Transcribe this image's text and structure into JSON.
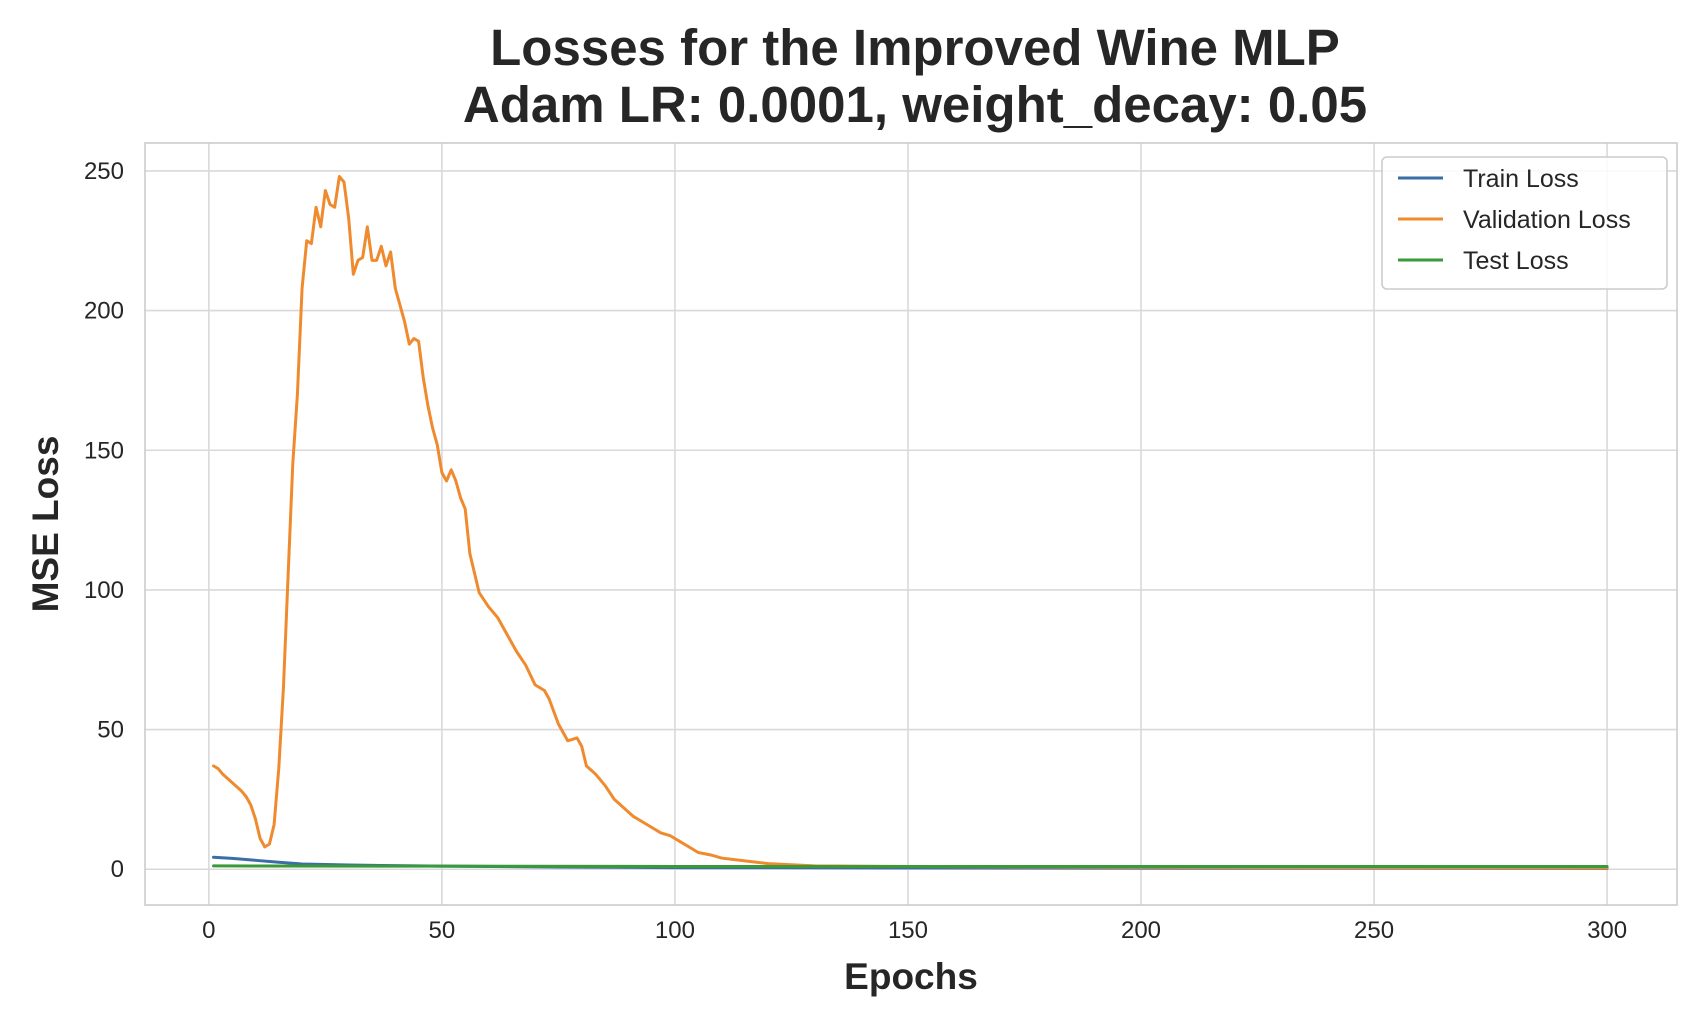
{
  "chart_data": {
    "type": "line",
    "title": [
      "Losses for the Improved Wine MLP",
      "Adam LR: 0.0001, weight_decay: 0.05"
    ],
    "xlabel": "Epochs",
    "ylabel": "MSE Loss",
    "xlim": [
      -13.7,
      315
    ],
    "ylim": [
      -12.8,
      260
    ],
    "xticks": [
      0,
      50,
      100,
      150,
      200,
      250,
      300
    ],
    "yticks": [
      0,
      50,
      100,
      150,
      200,
      250
    ],
    "grid": true,
    "legend_position": "top-right",
    "series": [
      {
        "name": "Train Loss",
        "color": "#3a6ea5",
        "points": [
          [
            1,
            4.3
          ],
          [
            5,
            3.9
          ],
          [
            10,
            3.2
          ],
          [
            15,
            2.5
          ],
          [
            20,
            1.9
          ],
          [
            25,
            1.7
          ],
          [
            30,
            1.5
          ],
          [
            40,
            1.3
          ],
          [
            50,
            1.1
          ],
          [
            75,
            0.8
          ],
          [
            100,
            0.6
          ],
          [
            150,
            0.5
          ],
          [
            200,
            0.4
          ],
          [
            250,
            0.4
          ],
          [
            300,
            0.3
          ]
        ]
      },
      {
        "name": "Validation Loss",
        "color": "#ef8a2e",
        "points": [
          [
            1,
            37
          ],
          [
            2,
            36
          ],
          [
            3,
            34
          ],
          [
            5,
            31
          ],
          [
            7,
            28
          ],
          [
            8,
            26
          ],
          [
            9,
            23
          ],
          [
            10,
            18
          ],
          [
            11,
            11
          ],
          [
            12,
            8
          ],
          [
            13,
            9
          ],
          [
            14,
            16
          ],
          [
            15,
            36
          ],
          [
            16,
            65
          ],
          [
            17,
            105
          ],
          [
            18,
            145
          ],
          [
            19,
            170
          ],
          [
            20,
            208
          ],
          [
            21,
            225
          ],
          [
            22,
            224
          ],
          [
            23,
            237
          ],
          [
            24,
            230
          ],
          [
            25,
            243
          ],
          [
            26,
            238
          ],
          [
            27,
            237
          ],
          [
            28,
            248
          ],
          [
            29,
            246
          ],
          [
            30,
            233
          ],
          [
            31,
            213
          ],
          [
            32,
            218
          ],
          [
            33,
            219
          ],
          [
            34,
            230
          ],
          [
            35,
            218
          ],
          [
            36,
            218
          ],
          [
            37,
            223
          ],
          [
            38,
            216
          ],
          [
            39,
            221
          ],
          [
            40,
            208
          ],
          [
            41,
            202
          ],
          [
            42,
            196
          ],
          [
            43,
            188
          ],
          [
            44,
            190
          ],
          [
            45,
            189
          ],
          [
            46,
            176
          ],
          [
            47,
            166
          ],
          [
            48,
            158
          ],
          [
            49,
            152
          ],
          [
            50,
            142
          ],
          [
            51,
            139
          ],
          [
            52,
            143
          ],
          [
            53,
            139
          ],
          [
            54,
            133
          ],
          [
            55,
            129
          ],
          [
            56,
            113
          ],
          [
            57,
            106
          ],
          [
            58,
            99
          ],
          [
            60,
            94
          ],
          [
            62,
            90
          ],
          [
            64,
            84
          ],
          [
            66,
            78
          ],
          [
            68,
            73
          ],
          [
            70,
            66
          ],
          [
            72,
            64
          ],
          [
            73,
            61
          ],
          [
            75,
            52
          ],
          [
            77,
            46
          ],
          [
            79,
            47
          ],
          [
            80,
            44
          ],
          [
            81,
            37
          ],
          [
            83,
            34
          ],
          [
            85,
            30
          ],
          [
            87,
            25
          ],
          [
            89,
            22
          ],
          [
            91,
            19
          ],
          [
            93,
            17
          ],
          [
            95,
            15
          ],
          [
            97,
            13
          ],
          [
            99,
            12
          ],
          [
            101,
            10
          ],
          [
            103,
            8
          ],
          [
            105,
            6
          ],
          [
            108,
            5
          ],
          [
            110,
            4
          ],
          [
            115,
            3
          ],
          [
            120,
            2
          ],
          [
            130,
            1.2
          ],
          [
            150,
            1.0
          ],
          [
            200,
            0.7
          ],
          [
            250,
            0.6
          ],
          [
            300,
            0.5
          ]
        ]
      },
      {
        "name": "Test Loss",
        "color": "#3a9a3a",
        "points": [
          [
            1,
            1.2
          ],
          [
            50,
            1.1
          ],
          [
            100,
            1.0
          ],
          [
            150,
            1.0
          ],
          [
            200,
            1.0
          ],
          [
            250,
            1.0
          ],
          [
            300,
            1.0
          ]
        ]
      }
    ]
  }
}
